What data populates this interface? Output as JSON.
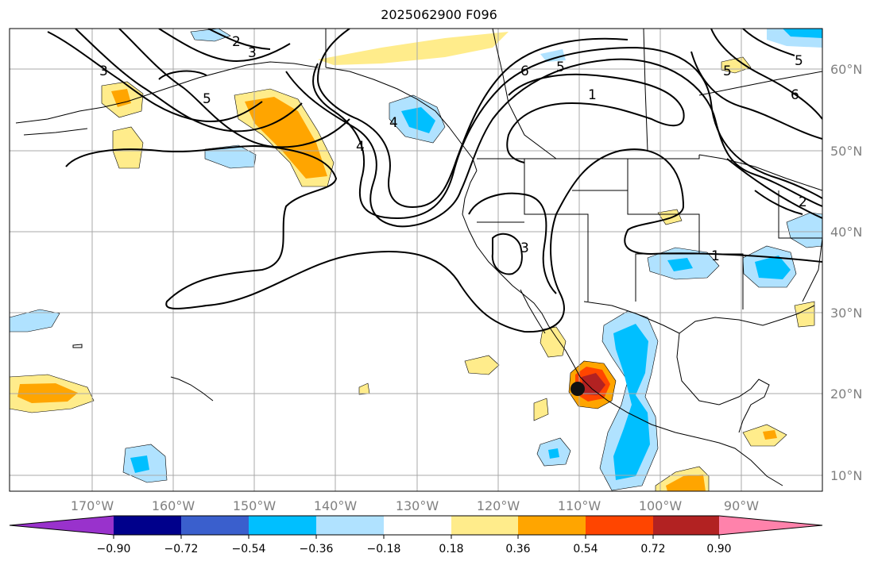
{
  "title": "2025062900 F096",
  "lat_labels": [
    "60°N",
    "50°N",
    "40°N",
    "30°N",
    "20°N",
    "10°N"
  ],
  "lon_labels": [
    "170°W",
    "160°W",
    "150°W",
    "140°W",
    "130°W",
    "120°W",
    "110°W",
    "100°W",
    "90°W"
  ],
  "contour_labels": [
    "2",
    "3",
    "3",
    "4",
    "4",
    "5",
    "5",
    "5",
    "5",
    "6",
    "6",
    "1",
    "1",
    "2",
    "3"
  ],
  "colorbar": {
    "tick_labels": [
      "−0.90",
      "−0.72",
      "−0.54",
      "−0.36",
      "−0.18",
      "0.18",
      "0.36",
      "0.54",
      "0.72",
      "0.90"
    ],
    "colors": [
      "#9932cc",
      "#00008b",
      "#3a5fcd",
      "#00bfff",
      "#b0e2ff",
      "#ffffff",
      "#ffec8b",
      "#ffa500",
      "#ff4500",
      "#b22222",
      "#ff82ab"
    ]
  },
  "colors": {
    "light_blue": "#b0e2ff",
    "blue": "#00bfff",
    "yellow": "#ffec8b",
    "orange": "#ffa500",
    "red_orange": "#ff4500",
    "dark_red": "#b22222",
    "grid": "#a9a9a9",
    "label_gray": "#808080"
  },
  "marker": "storm-center-marker"
}
